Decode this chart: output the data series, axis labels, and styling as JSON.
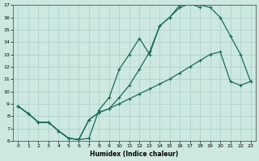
{
  "xlabel": "Humidex (Indice chaleur)",
  "xlim": [
    -0.5,
    23.5
  ],
  "ylim": [
    6,
    17
  ],
  "xticks": [
    0,
    1,
    2,
    3,
    4,
    5,
    6,
    7,
    8,
    9,
    10,
    11,
    12,
    13,
    14,
    15,
    16,
    17,
    18,
    19,
    20,
    21,
    22,
    23
  ],
  "yticks": [
    6,
    7,
    8,
    9,
    10,
    11,
    12,
    13,
    14,
    15,
    16,
    17
  ],
  "bg_color": "#cce8e0",
  "line_color": "#1a6b5a",
  "grid_color": "#aacfc8",
  "curve1_x": [
    0,
    1,
    2,
    3,
    4,
    5,
    6,
    7,
    8,
    9,
    10,
    11,
    12,
    13,
    14,
    15,
    16,
    17,
    18
  ],
  "curve1_y": [
    8.8,
    8.2,
    7.5,
    7.5,
    6.8,
    6.2,
    6.1,
    6.2,
    8.5,
    9.5,
    11.8,
    13.0,
    14.3,
    13.0,
    15.3,
    16.0,
    16.8,
    17.1,
    16.8
  ],
  "curve2_x": [
    0,
    1,
    2,
    3,
    4,
    5,
    6,
    7,
    8,
    9,
    10,
    11,
    12,
    13,
    14,
    15,
    16,
    17,
    18,
    19,
    20,
    21,
    22,
    23
  ],
  "curve2_y": [
    8.8,
    8.2,
    7.5,
    7.5,
    6.8,
    6.2,
    6.1,
    7.7,
    8.3,
    8.6,
    9.0,
    9.4,
    9.8,
    10.2,
    10.6,
    11.0,
    11.5,
    12.0,
    12.5,
    13.0,
    13.2,
    10.8,
    10.5,
    10.8
  ],
  "curve3_x": [
    0,
    1,
    2,
    3,
    4,
    5,
    6,
    7,
    8,
    9,
    10,
    11,
    12,
    13,
    14,
    15,
    16,
    17,
    18,
    19,
    20,
    21,
    22,
    23
  ],
  "curve3_y": [
    8.8,
    8.2,
    7.5,
    7.5,
    6.8,
    6.2,
    6.1,
    7.7,
    8.3,
    8.6,
    9.5,
    10.5,
    11.8,
    13.2,
    15.3,
    16.0,
    17.0,
    17.3,
    17.0,
    16.8,
    16.0,
    14.5,
    13.0,
    10.8
  ]
}
